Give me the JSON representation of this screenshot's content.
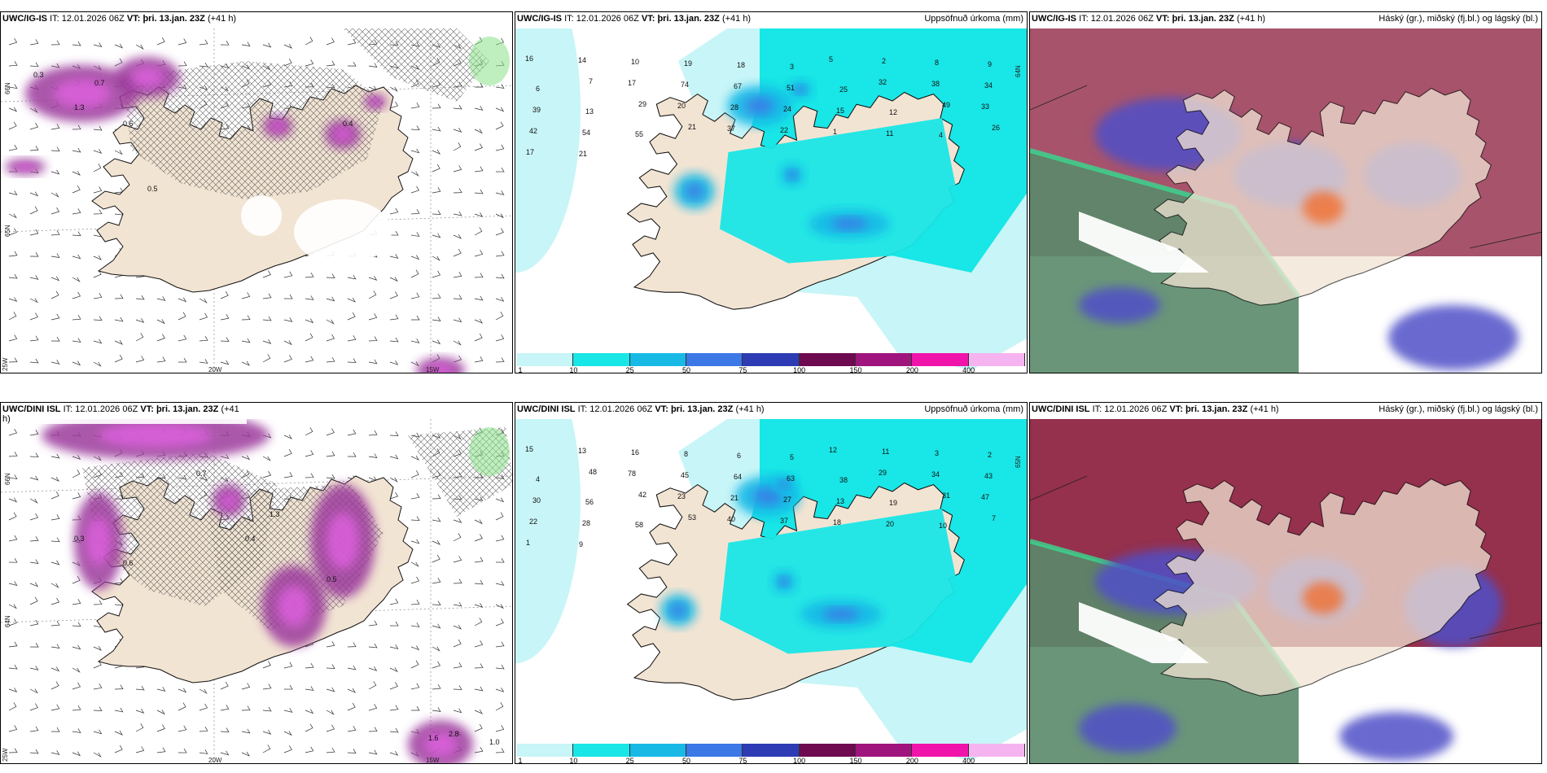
{
  "panels": [
    {
      "id": "p1",
      "model": "UWC/IG-IS",
      "it_label": "IT:",
      "it": "12.01.2026 06Z",
      "vt_label": "VT:",
      "vt": "þri. 13.jan. 23Z",
      "lead": "(+41 h)",
      "right_title": "",
      "kind": "snow"
    },
    {
      "id": "p2",
      "model": "UWC/IG-IS",
      "it_label": "IT:",
      "it": "12.01.2026 06Z",
      "vt_label": "VT:",
      "vt": "þri. 13.jan. 23Z",
      "lead": "(+41 h)",
      "right_title": "Uppsöfnuð úrkoma (mm)",
      "kind": "precip"
    },
    {
      "id": "p3",
      "model": "UWC/IG-IS",
      "it_label": "IT:",
      "it": "12.01.2026 06Z",
      "vt_label": "VT:",
      "vt": "þri. 13.jan. 23Z",
      "lead": "(+41 h)",
      "right_title": "Háský (gr.), miðský (fj.bl.) og lágský (bl.)",
      "kind": "cloud"
    },
    {
      "id": "p4",
      "model": "UWC/DINI ISL",
      "it_label": "IT:",
      "it": "12.01.2026 06Z",
      "vt_label": "VT:",
      "vt": "þri. 13.jan. 23Z",
      "lead": "(+41 h)",
      "right_title": "",
      "kind": "snow"
    },
    {
      "id": "p5",
      "model": "UWC/DINI ISL",
      "it_label": "IT:",
      "it": "12.01.2026 06Z",
      "vt_label": "VT:",
      "vt": "þri. 13.jan. 23Z",
      "lead": "(+41 h)",
      "right_title": "Uppsöfnuð úrkoma (mm)",
      "kind": "precip"
    },
    {
      "id": "p6",
      "model": "UWC/DINI ISL",
      "it_label": "IT:",
      "it": "12.01.2026 06Z",
      "vt_label": "VT:",
      "vt": "þri. 13.jan. 23Z",
      "lead": "(+41 h)",
      "right_title": "Háský (gr.), miðský (fj.bl.) og lágský (bl.)",
      "kind": "cloud"
    }
  ],
  "colorbar": {
    "ticks": [
      "1",
      "10",
      "25",
      "50",
      "75",
      "100",
      "150",
      "200",
      "400"
    ],
    "colors": [
      "#c8f5f7",
      "#19e6e6",
      "#19b9e6",
      "#3c78e6",
      "#2d3cb4",
      "#6e0a50",
      "#a0147d",
      "#f014aa",
      "#f5b4f0"
    ]
  },
  "axes": {
    "snow_top": [
      "20W",
      "15W",
      "25W",
      "66N",
      "65N"
    ],
    "snow_bottom": [
      "20W",
      "15W",
      "25W",
      "66N",
      "64N"
    ],
    "precip_right_top": "64N",
    "precip_right_bottom": "65N"
  },
  "precip_labels_top": [
    "16",
    "14",
    "10",
    "19",
    "18",
    "3",
    "5",
    "2",
    "8",
    "9",
    "6",
    "7",
    "17",
    "74",
    "67",
    "51",
    "25",
    "32",
    "38",
    "34",
    "39",
    "13",
    "29",
    "20",
    "28",
    "24",
    "15",
    "12",
    "49",
    "33",
    "42",
    "54",
    "55",
    "21",
    "37",
    "22",
    "1",
    "11",
    "4",
    "26",
    "17",
    "21"
  ],
  "precip_labels_bottom": [
    "15",
    "13",
    "16",
    "8",
    "6",
    "5",
    "12",
    "11",
    "3",
    "2",
    "4",
    "48",
    "78",
    "45",
    "64",
    "63",
    "38",
    "29",
    "34",
    "43",
    "30",
    "56",
    "42",
    "23",
    "21",
    "27",
    "13",
    "19",
    "31",
    "47",
    "22",
    "28",
    "58",
    "53",
    "40",
    "37",
    "18",
    "20",
    "10",
    "7",
    "1",
    "9"
  ],
  "snow_labels_top": [
    "0.3",
    "0.7",
    "0.6",
    "0.4",
    "1.3",
    "0.5"
  ],
  "snow_labels_bottom": [
    "0.3",
    "0.6",
    "0.4",
    "1.3",
    "0.5",
    "0.7",
    "2.8",
    "1.0",
    "1.6"
  ],
  "colors": {
    "land": "#f2e4d3",
    "sea_precip": "#c8f5f7",
    "cyan": "#19e6e6",
    "mid_blue": "#19b9e6",
    "snow_purple": "#9c3a9c",
    "snow_magenta": "#e060e0",
    "hatch": "#555555",
    "high_cloud": "#5a8a6a",
    "mid_cloud": "#5050c8",
    "low_cloud": "#8a1a3a",
    "green_edge": "#3ad890"
  }
}
